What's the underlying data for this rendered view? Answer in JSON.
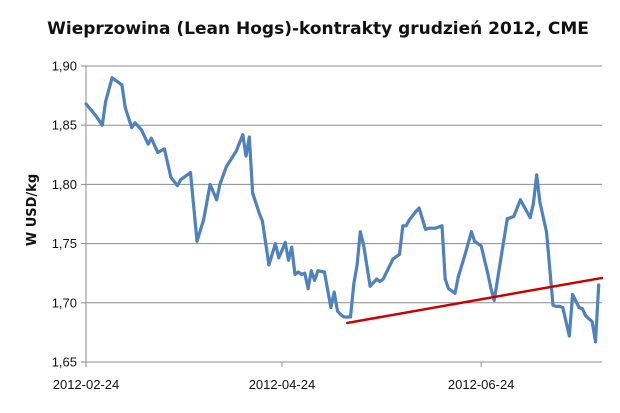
{
  "chart_data": {
    "type": "line",
    "title": "Wieprzowina (Lean Hogs)-kontrakty grudzień 2012, CME",
    "ylabel": "W USD/kg",
    "xlabel": "",
    "ylim": [
      1.65,
      1.9
    ],
    "yticks": [
      1.65,
      1.7,
      1.75,
      1.8,
      1.85,
      1.9
    ],
    "ytick_labels": [
      "1,65",
      "1,70",
      "1,75",
      "1,80",
      "1,85",
      "1,90"
    ],
    "xlim": [
      "2012-02-24",
      "2012-07-31"
    ],
    "xticks": [
      "2012-02-24",
      "2012-04-24",
      "2012-06-24"
    ],
    "grid": "horizontal",
    "series": [
      {
        "color": "#4f81bd",
        "x": [
          "2012-02-24",
          "2012-02-27",
          "2012-02-29",
          "2012-03-01",
          "2012-03-03",
          "2012-03-06",
          "2012-03-07",
          "2012-03-09",
          "2012-03-10",
          "2012-03-12",
          "2012-03-13",
          "2012-03-14",
          "2012-03-15",
          "2012-03-17",
          "2012-03-19",
          "2012-03-21",
          "2012-03-23",
          "2012-03-24",
          "2012-03-27",
          "2012-03-29",
          "2012-03-31",
          "2012-04-02",
          "2012-04-04",
          "2012-04-05",
          "2012-04-07",
          "2012-04-10",
          "2012-04-12",
          "2012-04-13",
          "2012-04-14",
          "2012-04-15",
          "2012-04-17",
          "2012-04-18",
          "2012-04-20",
          "2012-04-22",
          "2012-04-23",
          "2012-04-24",
          "2012-04-25",
          "2012-04-26",
          "2012-04-27",
          "2012-04-28",
          "2012-04-29",
          "2012-04-30",
          "2012-05-01",
          "2012-05-02",
          "2012-05-03",
          "2012-05-04",
          "2012-05-05",
          "2012-05-07",
          "2012-05-09",
          "2012-05-10",
          "2012-05-11",
          "2012-05-12",
          "2012-05-13",
          "2012-05-15",
          "2012-05-16",
          "2012-05-17",
          "2012-05-18",
          "2012-05-19",
          "2012-05-21",
          "2012-05-23",
          "2012-05-24",
          "2012-05-25",
          "2012-05-28",
          "2012-05-30",
          "2012-05-31",
          "2012-06-01",
          "2012-06-02",
          "2012-06-04",
          "2012-06-05",
          "2012-06-07",
          "2012-06-08",
          "2012-06-10",
          "2012-06-12",
          "2012-06-13",
          "2012-06-14",
          "2012-06-16",
          "2012-06-17",
          "2012-06-19",
          "2012-06-21",
          "2012-06-22",
          "2012-06-24",
          "2012-06-26",
          "2012-06-27",
          "2012-06-28",
          "2012-06-30",
          "2012-07-02",
          "2012-07-03",
          "2012-07-04",
          "2012-07-06",
          "2012-07-07",
          "2012-07-09",
          "2012-07-10",
          "2012-07-11",
          "2012-07-12",
          "2012-07-14",
          "2012-07-16",
          "2012-07-17",
          "2012-07-18",
          "2012-07-19",
          "2012-07-21",
          "2012-07-22",
          "2012-07-24",
          "2012-07-25",
          "2012-07-26",
          "2012-07-28",
          "2012-07-29",
          "2012-07-30"
        ],
        "values": [
          1.868,
          1.858,
          1.85,
          1.87,
          1.89,
          1.884,
          1.865,
          1.848,
          1.852,
          1.846,
          1.84,
          1.834,
          1.839,
          1.827,
          1.83,
          1.806,
          1.799,
          1.804,
          1.81,
          1.752,
          1.77,
          1.8,
          1.787,
          1.8,
          1.815,
          1.828,
          1.842,
          1.824,
          1.84,
          1.793,
          1.776,
          1.769,
          1.732,
          1.75,
          1.738,
          1.744,
          1.751,
          1.736,
          1.747,
          1.724,
          1.726,
          1.724,
          1.725,
          1.712,
          1.727,
          1.719,
          1.727,
          1.726,
          1.696,
          1.709,
          1.693,
          1.69,
          1.688,
          1.688,
          1.716,
          1.732,
          1.76,
          1.749,
          1.714,
          1.72,
          1.718,
          1.72,
          1.737,
          1.741,
          1.765,
          1.765,
          1.77,
          1.777,
          1.78,
          1.762,
          1.763,
          1.763,
          1.765,
          1.72,
          1.712,
          1.708,
          1.722,
          1.74,
          1.76,
          1.752,
          1.748,
          1.725,
          1.712,
          1.702,
          1.737,
          1.771,
          1.772,
          1.773,
          1.787,
          1.782,
          1.772,
          1.784,
          1.808,
          1.785,
          1.76,
          1.698,
          1.697,
          1.697,
          1.696,
          1.672,
          1.707,
          1.696,
          1.695,
          1.689,
          1.684,
          1.667,
          1.715
        ]
      }
    ],
    "annotations": [
      {
        "type": "trendline",
        "color": "#cc0000",
        "x": [
          "2012-05-14",
          "2012-07-31"
        ],
        "y": [
          1.683,
          1.721
        ]
      }
    ]
  }
}
